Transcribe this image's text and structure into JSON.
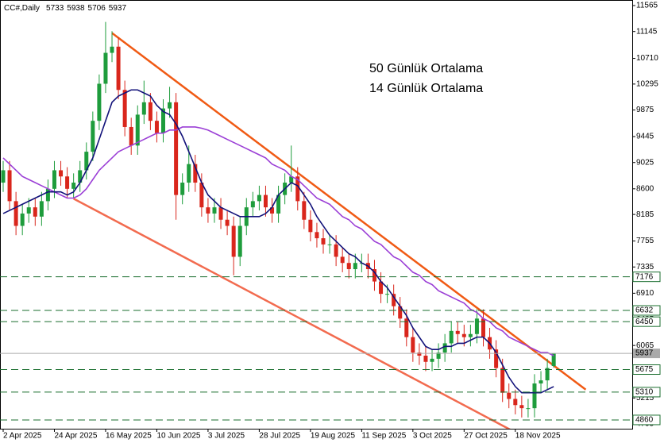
{
  "chart_data": {
    "type": "candlestick",
    "title": "CC#,Daily",
    "categories": [
      "2 Apr 2025",
      null,
      null,
      null,
      null,
      null,
      null,
      null,
      "24 Apr 2025",
      null,
      null,
      null,
      null,
      null,
      null,
      null,
      "16 May 2025",
      null,
      null,
      null,
      null,
      null,
      null,
      null,
      "10 Jun 2025",
      null,
      null,
      null,
      null,
      null,
      null,
      null,
      "3 Jul 2025",
      null,
      null,
      null,
      null,
      null,
      null,
      null,
      "28 Jul 2025",
      null,
      null,
      null,
      null,
      null,
      null,
      null,
      "19 Aug 2025",
      null,
      null,
      null,
      null,
      null,
      null,
      null,
      "11 Sep 2025",
      null,
      null,
      null,
      null,
      null,
      null,
      null,
      "3 Oct 2025",
      null,
      null,
      null,
      null,
      null,
      null,
      null,
      "27 Oct 2025",
      null,
      null,
      null,
      null,
      null,
      null,
      null,
      "18 Nov 2025",
      null,
      null,
      null,
      null,
      null,
      null
    ],
    "open": [
      8700,
      8900,
      8400,
      8000,
      8200,
      8300,
      8150,
      8400,
      8600,
      8900,
      8800,
      8600,
      8700,
      8900,
      9200,
      9700,
      10300,
      10800,
      10900,
      10200,
      9600,
      9300,
      9800,
      10000,
      9700,
      9500,
      9900,
      10000,
      8500,
      8700,
      9000,
      8700,
      8300,
      8200,
      8300,
      8100,
      8000,
      7500,
      8000,
      8300,
      8400,
      8500,
      8300,
      8200,
      8500,
      8700,
      8800,
      8400,
      8100,
      7900,
      7800,
      7700,
      7700,
      7500,
      7400,
      7300,
      7400,
      7400,
      7300,
      7100,
      6900,
      6900,
      6700,
      6500,
      6200,
      5950,
      5900,
      5800,
      5850,
      5950,
      6100,
      6300,
      6250,
      6200,
      6250,
      6500,
      6200,
      6000,
      5700,
      5300,
      5200,
      5100,
      5050,
      5050,
      5450,
      5500,
      5733
    ],
    "high": [
      9050,
      9050,
      8550,
      8350,
      8450,
      8450,
      8550,
      8750,
      9050,
      9050,
      8950,
      8850,
      9050,
      9350,
      9850,
      10450,
      11300,
      11150,
      11050,
      10350,
      9750,
      9950,
      10350,
      10150,
      9850,
      10050,
      10250,
      10150,
      8850,
      9300,
      9150,
      8850,
      8450,
      8450,
      8450,
      8250,
      8150,
      8150,
      8450,
      8550,
      8650,
      8650,
      8450,
      8650,
      8850,
      9300,
      8950,
      8550,
      8250,
      8050,
      7950,
      7850,
      7850,
      7650,
      7550,
      7550,
      7550,
      7550,
      7450,
      7250,
      7050,
      7050,
      6850,
      6650,
      6350,
      6100,
      6050,
      6000,
      6100,
      6250,
      6450,
      6450,
      6400,
      6400,
      6650,
      6650,
      6350,
      6150,
      5850,
      5450,
      5350,
      5250,
      5200,
      5600,
      5650,
      5850,
      5938
    ],
    "low": [
      8550,
      8250,
      7850,
      7850,
      8050,
      8000,
      8000,
      8250,
      8450,
      8650,
      8450,
      8450,
      8550,
      8750,
      9050,
      9550,
      10150,
      10650,
      10050,
      9450,
      9150,
      9150,
      9650,
      9550,
      9350,
      9350,
      9750,
      8100,
      8350,
      8550,
      8550,
      8150,
      8050,
      8050,
      7950,
      7850,
      7200,
      7350,
      7850,
      8150,
      8250,
      8150,
      8050,
      8050,
      8350,
      8550,
      8250,
      7950,
      7750,
      7650,
      7550,
      7550,
      7350,
      7250,
      7150,
      7150,
      7250,
      7150,
      6950,
      6750,
      6750,
      6550,
      6350,
      6050,
      5800,
      5750,
      5650,
      5650,
      5700,
      5800,
      5950,
      6100,
      6050,
      6050,
      6100,
      6050,
      5850,
      5550,
      5150,
      5050,
      4950,
      4900,
      4900,
      4900,
      5300,
      5350,
      5706
    ],
    "close": [
      8900,
      8400,
      8000,
      8200,
      8300,
      8150,
      8400,
      8600,
      8900,
      8800,
      8600,
      8700,
      8900,
      9200,
      9700,
      10300,
      10800,
      10900,
      10200,
      9600,
      9300,
      9800,
      10000,
      9700,
      9500,
      9900,
      10000,
      8500,
      8700,
      9000,
      8700,
      8300,
      8200,
      8300,
      8100,
      8000,
      7500,
      8000,
      8300,
      8400,
      8500,
      8300,
      8200,
      8500,
      8700,
      8800,
      8400,
      8100,
      7900,
      7800,
      7700,
      7700,
      7500,
      7400,
      7300,
      7400,
      7400,
      7300,
      7100,
      6900,
      6900,
      6700,
      6500,
      6200,
      5950,
      5900,
      5800,
      5850,
      5950,
      6100,
      6300,
      6250,
      6200,
      6250,
      6500,
      6200,
      6000,
      5700,
      5300,
      5200,
      5100,
      5050,
      5050,
      5450,
      5500,
      5700,
      5937
    ],
    "up_color": "#1e9c3c",
    "down_color": "#d9261c",
    "series": [
      {
        "name": "50 Günlük Ortalama",
        "color": "#9b3fd6",
        "values": [
          9100,
          9000,
          8900,
          8800,
          8750,
          8700,
          8650,
          8600,
          8550,
          8500,
          8450,
          8450,
          8500,
          8600,
          8750,
          8900,
          9000,
          9100,
          9200,
          9250,
          9300,
          9350,
          9400,
          9450,
          9500,
          9500,
          9550,
          9550,
          9600,
          9600,
          9600,
          9580,
          9550,
          9500,
          9450,
          9400,
          9350,
          9300,
          9250,
          9200,
          9150,
          9100,
          9000,
          8950,
          8900,
          8800,
          8750,
          8650,
          8550,
          8450,
          8400,
          8350,
          8250,
          8150,
          8100,
          8000,
          7950,
          7850,
          7750,
          7700,
          7600,
          7500,
          7450,
          7350,
          7250,
          7200,
          7100,
          7050,
          6950,
          6900,
          6850,
          6800,
          6750,
          6650,
          6600,
          6500,
          6450,
          6350,
          6300,
          6200,
          6150,
          6100,
          6050,
          6000,
          5950,
          5950,
          5900
        ]
      },
      {
        "name": "14 Günlük Ortalama",
        "color": "#12127a",
        "values": [
          8200,
          8250,
          8300,
          8350,
          8400,
          8450,
          8500,
          8550,
          8550,
          8550,
          8500,
          8550,
          8700,
          8900,
          9100,
          9400,
          9700,
          10000,
          10100,
          10150,
          10200,
          10200,
          10150,
          10100,
          9950,
          9850,
          9800,
          9650,
          9450,
          9200,
          8950,
          8700,
          8500,
          8400,
          8300,
          8250,
          8200,
          8150,
          8150,
          8150,
          8150,
          8200,
          8300,
          8500,
          8600,
          8700,
          8650,
          8500,
          8350,
          8150,
          8000,
          7850,
          7750,
          7650,
          7550,
          7500,
          7400,
          7350,
          7250,
          7100,
          7000,
          6850,
          6700,
          6550,
          6350,
          6200,
          6050,
          6000,
          6000,
          6050,
          6050,
          6100,
          6100,
          6150,
          6200,
          6200,
          6100,
          5950,
          5750,
          5550,
          5400,
          5300,
          5300,
          5300,
          5300,
          5350,
          5400
        ]
      }
    ],
    "trendlines": [
      {
        "color": "#f05a14",
        "x": [
          17,
          91
        ],
        "y": [
          11120,
          5350
        ]
      },
      {
        "color": "#f26b4f",
        "x": [
          11,
          82
        ],
        "y": [
          8440,
          4550
        ]
      }
    ],
    "levels": [
      7176,
      6632,
      6450,
      5675,
      5310,
      4860
    ],
    "ylim": [
      4718,
      11655
    ],
    "yticks": [
      11565,
      11145,
      10710,
      10295,
      9875,
      9445,
      9025,
      8600,
      8185,
      7755,
      7335,
      6910,
      6485,
      6065,
      5645,
      5215,
      4795
    ]
  }
}
